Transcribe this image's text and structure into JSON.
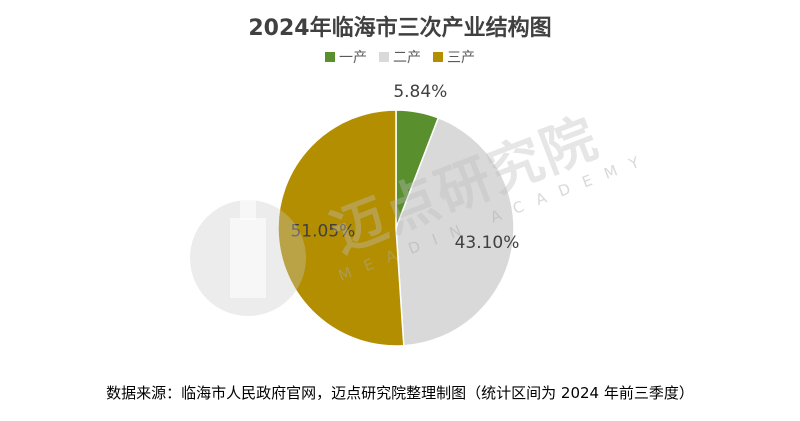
{
  "title": "2024年临海市三次产业结构图",
  "legend": [
    {
      "label": "一产",
      "color": "#5a8f2e"
    },
    {
      "label": "二产",
      "color": "#d9d9d9"
    },
    {
      "label": "三产",
      "color": "#b38e00"
    }
  ],
  "watermark": {
    "cn": "迈点研究院",
    "en": "MEADIN ACADEMY"
  },
  "source": "数据来源：临海市人民政府官网，迈点研究院整理制图（统计区间为 2024 年前三季度）",
  "chart_data": {
    "type": "pie",
    "title": "2024年临海市三次产业结构图",
    "categories": [
      "一产",
      "二产",
      "三产"
    ],
    "values": [
      5.84,
      43.1,
      51.05
    ],
    "value_labels": [
      "5.84%",
      "43.10%",
      "51.05%"
    ],
    "colors": [
      "#5a8f2e",
      "#d9d9d9",
      "#b38e00"
    ],
    "start_angle": "12 o'clock, clockwise",
    "legend_position": "top"
  }
}
